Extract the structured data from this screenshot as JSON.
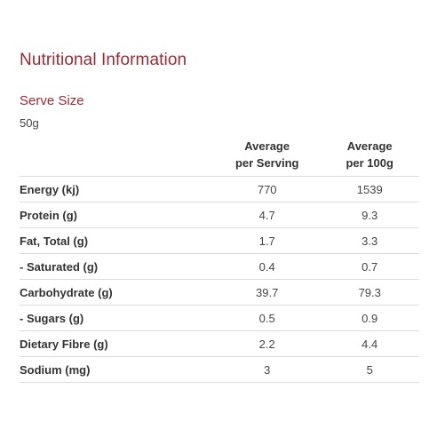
{
  "title": "Nutritional Information",
  "serve": {
    "heading": "Serve Size",
    "value": "50g"
  },
  "table": {
    "headers": {
      "per_serving_line1": "Average",
      "per_serving_line2": "per Serving",
      "per_100g_line1": "Average",
      "per_100g_line2": "per 100g"
    },
    "rows": [
      {
        "label": "Energy (kj)",
        "per_serving": "770",
        "per_100g": "1539"
      },
      {
        "label": "Protein (g)",
        "per_serving": "4.7",
        "per_100g": "9.3"
      },
      {
        "label": "Fat, Total (g)",
        "per_serving": "1.7",
        "per_100g": "3.3"
      },
      {
        "label": "- Saturated (g)",
        "per_serving": "0.4",
        "per_100g": "0.7"
      },
      {
        "label": "Carbohydrate (g)",
        "per_serving": "39.7",
        "per_100g": "79.3"
      },
      {
        "label": "- Sugars (g)",
        "per_serving": "0.5",
        "per_100g": "0.9"
      },
      {
        "label": "Dietary Fibre (g)",
        "per_serving": "2.2",
        "per_100g": "4.4"
      },
      {
        "label": "Sodium (mg)",
        "per_serving": "3",
        "per_100g": "5"
      }
    ]
  },
  "colors": {
    "heading": "#9a2a34",
    "text": "#333333",
    "divider": "#dcdcdc"
  }
}
